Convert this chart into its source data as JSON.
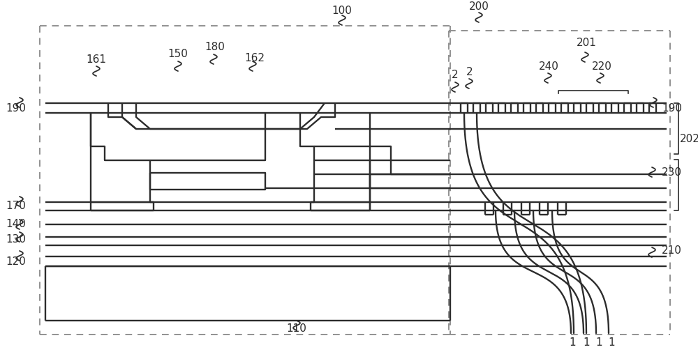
{
  "bg": "#ffffff",
  "lc": "#2c2c2c",
  "dc": "#909090",
  "lw": 1.3,
  "lw2": 1.7,
  "lw3": 1.0
}
